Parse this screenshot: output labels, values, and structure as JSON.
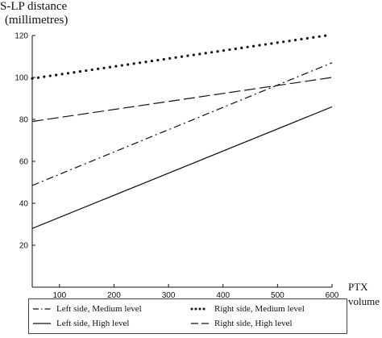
{
  "chart_data": {
    "type": "line",
    "ylabel_line1": "S-LP distance",
    "ylabel_line2": "(millimetres)",
    "xlabel_line1": "PTX",
    "xlabel_line2": "volume",
    "xlim": [
      50,
      600
    ],
    "ylim": [
      0,
      120
    ],
    "xticks": [
      100,
      200,
      300,
      400,
      500,
      600
    ],
    "yticks": [
      20,
      40,
      60,
      80,
      100,
      120
    ],
    "grid": false,
    "legend_position": "bottom",
    "series": [
      {
        "name": "Left side, Medium level",
        "style": "dashdot",
        "x": [
          50,
          600
        ],
        "y": [
          48.5,
          107
        ]
      },
      {
        "name": "Right side, Medium level",
        "style": "dotted",
        "x": [
          50,
          590
        ],
        "y": [
          99.5,
          120
        ]
      },
      {
        "name": "Left side, High level",
        "style": "solid",
        "x": [
          50,
          600
        ],
        "y": [
          28,
          86
        ]
      },
      {
        "name": "Right side, High level",
        "style": "dashed",
        "x": [
          50,
          600
        ],
        "y": [
          79,
          100
        ]
      }
    ]
  }
}
